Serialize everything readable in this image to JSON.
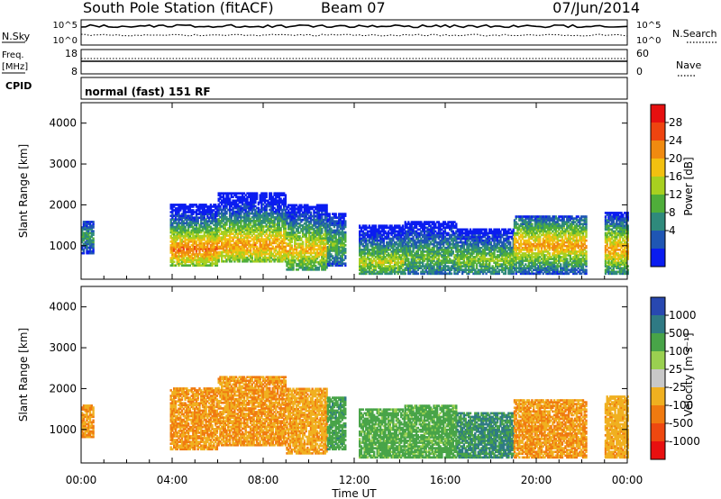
{
  "header": {
    "station": "South Pole Station (fitACF)",
    "beam": "Beam 07",
    "date": "07/Jun/2014"
  },
  "strip_labels": {
    "nsky": "N.Sky",
    "nsearch": "N.Search",
    "freq_top": "Freq.",
    "freq_unit": "[MHz]",
    "nave": "Nave",
    "cpid": "CPID",
    "pow_hi": "10^5",
    "pow_lo": "10^0",
    "freq_hi": "18",
    "freq_lo": "8",
    "nave_hi": "60",
    "nave_lo": "0",
    "mode": "normal (fast) 151 RF"
  },
  "axes": {
    "x_label": "Time UT",
    "x_ticks": [
      "00:00",
      "04:00",
      "08:00",
      "12:00",
      "16:00",
      "20:00",
      "00:00"
    ],
    "y_label": "Slant Range [km]",
    "y_ticks": [
      "1000",
      "2000",
      "3000",
      "4000"
    ],
    "y_tick_values": [
      1000,
      2000,
      3000,
      4000
    ],
    "xlim_hours": [
      0,
      24
    ],
    "ylim_km": [
      180,
      4500
    ]
  },
  "colorbars": {
    "power": {
      "label": "Power [dB]",
      "ticks": [
        "4",
        "8",
        "12",
        "16",
        "20",
        "24",
        "28"
      ],
      "colors": [
        "#0a1cf0",
        "#1f56b4",
        "#2f8a7c",
        "#4fae3a",
        "#a8d020",
        "#f2c010",
        "#f08a10",
        "#ee4410",
        "#e61010"
      ]
    },
    "velocity": {
      "label": "Velocity [m s⁻¹]",
      "ticks": [
        "1000",
        "500",
        "100",
        "25",
        "-25",
        "-100",
        "-500",
        "-1000"
      ],
      "colors": [
        "#2848b0",
        "#2f7a84",
        "#48a448",
        "#9ad050",
        "#c8c8c8",
        "#f0b020",
        "#f07a10",
        "#ee4810",
        "#e81010"
      ]
    }
  },
  "chart_data": [
    {
      "type": "heatmap",
      "title": "Power",
      "xlabel": "Time UT",
      "ylabel": "Slant Range [km]",
      "xlim": [
        0,
        24
      ],
      "ylim": [
        180,
        4500
      ],
      "colorbar_label": "Power [dB]",
      "colorbar_ticks": [
        4,
        8,
        12,
        16,
        20,
        24,
        28
      ],
      "echo_bands": [
        {
          "t_start": 0.0,
          "t_end": 0.5,
          "range_low": 800,
          "range_high": 1600,
          "peak_range": 1200,
          "power_db": 12
        },
        {
          "t_start": 3.9,
          "t_end": 6.0,
          "range_low": 500,
          "range_high": 2000,
          "peak_range": 900,
          "power_db": 26
        },
        {
          "t_start": 6.0,
          "t_end": 9.0,
          "range_low": 600,
          "range_high": 2300,
          "peak_range": 1000,
          "power_db": 24
        },
        {
          "t_start": 9.0,
          "t_end": 10.8,
          "range_low": 400,
          "range_high": 2000,
          "peak_range": 900,
          "power_db": 22
        },
        {
          "t_start": 10.8,
          "t_end": 11.6,
          "range_low": 500,
          "range_high": 1800,
          "peak_range": 1000,
          "power_db": 14
        },
        {
          "t_start": 12.2,
          "t_end": 14.2,
          "range_low": 300,
          "range_high": 1500,
          "peak_range": 600,
          "power_db": 18
        },
        {
          "t_start": 14.2,
          "t_end": 16.5,
          "range_low": 300,
          "range_high": 1600,
          "peak_range": 700,
          "power_db": 14
        },
        {
          "t_start": 16.5,
          "t_end": 19.0,
          "range_low": 300,
          "range_high": 1400,
          "peak_range": 650,
          "power_db": 16
        },
        {
          "t_start": 19.0,
          "t_end": 22.2,
          "range_low": 300,
          "range_high": 1700,
          "peak_range": 1000,
          "power_db": 24
        },
        {
          "t_start": 23.0,
          "t_end": 24.0,
          "range_low": 300,
          "range_high": 1800,
          "peak_range": 900,
          "power_db": 24
        }
      ]
    },
    {
      "type": "heatmap",
      "title": "Velocity",
      "xlabel": "Time UT",
      "ylabel": "Slant Range [km]",
      "xlim": [
        0,
        24
      ],
      "ylim": [
        180,
        4500
      ],
      "colorbar_label": "Velocity [m s⁻¹]",
      "colorbar_ticks": [
        1000,
        500,
        100,
        25,
        -25,
        -100,
        -500,
        -1000
      ],
      "echo_bands": [
        {
          "t_start": 0.0,
          "t_end": 0.5,
          "range_low": 800,
          "range_high": 1600,
          "velocity": -300
        },
        {
          "t_start": 3.9,
          "t_end": 6.0,
          "range_low": 500,
          "range_high": 2000,
          "velocity": -300
        },
        {
          "t_start": 6.0,
          "t_end": 9.0,
          "range_low": 600,
          "range_high": 2300,
          "velocity": -300
        },
        {
          "t_start": 9.0,
          "t_end": 10.8,
          "range_low": 400,
          "range_high": 2000,
          "velocity": -250
        },
        {
          "t_start": 10.8,
          "t_end": 11.6,
          "range_low": 500,
          "range_high": 1800,
          "velocity": 200
        },
        {
          "t_start": 12.2,
          "t_end": 14.2,
          "range_low": 300,
          "range_high": 1500,
          "velocity": 150
        },
        {
          "t_start": 14.2,
          "t_end": 16.5,
          "range_low": 300,
          "range_high": 1600,
          "velocity": 150
        },
        {
          "t_start": 16.5,
          "t_end": 19.0,
          "range_low": 300,
          "range_high": 1400,
          "velocity": 300
        },
        {
          "t_start": 19.0,
          "t_end": 22.2,
          "range_low": 300,
          "range_high": 1700,
          "velocity": -300
        },
        {
          "t_start": 23.0,
          "t_end": 24.0,
          "range_low": 300,
          "range_high": 1800,
          "velocity": -200
        }
      ]
    }
  ]
}
